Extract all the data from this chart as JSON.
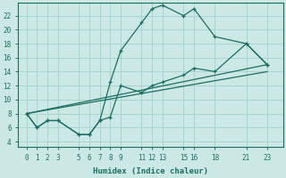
{
  "xlabel": "Humidex (Indice chaleur)",
  "bg_color": "#cce8e4",
  "grid_color": "#a8d4d0",
  "line_color": "#1a6e64",
  "xtick_labels": [
    "0",
    "1",
    "2",
    "3",
    "5",
    "6",
    "7",
    "8",
    "9",
    "11",
    "12",
    "13",
    "15",
    "16",
    "18",
    "21",
    "23"
  ],
  "xtick_pos": [
    0,
    1,
    2,
    3,
    5,
    6,
    7,
    8,
    9,
    11,
    12,
    13,
    15,
    16,
    18,
    21,
    23
  ],
  "ytick_labels": [
    "4",
    "6",
    "8",
    "10",
    "12",
    "14",
    "16",
    "18",
    "20",
    "22"
  ],
  "ytick_pos": [
    4,
    6,
    8,
    10,
    12,
    14,
    16,
    18,
    20,
    22
  ],
  "ylim": [
    3.2,
    23.8
  ],
  "xlim": [
    -0.8,
    24.5
  ],
  "curve1_x": [
    0,
    1,
    2,
    3,
    5,
    6,
    7,
    8,
    9,
    11,
    12,
    13,
    15,
    16,
    18,
    21,
    23
  ],
  "curve1_y": [
    8,
    6,
    7,
    7,
    5,
    5,
    7,
    12.5,
    17,
    21,
    23,
    23.5,
    22,
    23,
    19,
    18,
    15
  ],
  "curve2_x": [
    0,
    1,
    2,
    3,
    5,
    6,
    7,
    8,
    9,
    11,
    12,
    13,
    15,
    16,
    18,
    21,
    23
  ],
  "curve2_y": [
    8,
    6,
    7,
    7,
    5,
    5,
    7,
    7.5,
    12,
    11,
    12,
    12.5,
    13.5,
    14.5,
    14,
    18,
    15
  ],
  "curve3_x": [
    0,
    23
  ],
  "curve3_y": [
    8,
    15
  ],
  "curve4_x": [
    0,
    23
  ],
  "curve4_y": [
    8,
    14
  ]
}
